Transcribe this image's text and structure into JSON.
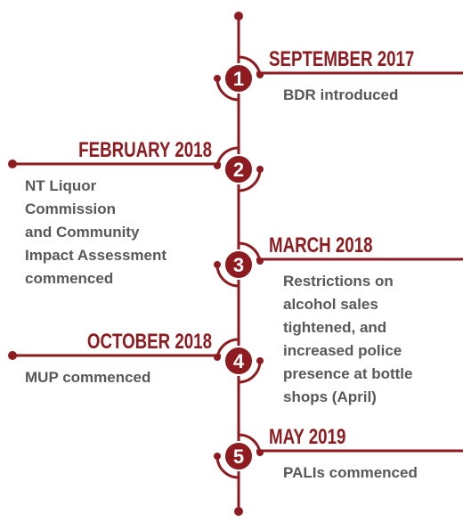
{
  "events": [
    {
      "number": "1",
      "date": "SEPTEMBER 2017",
      "lines": [
        "BDR introduced"
      ]
    },
    {
      "number": "2",
      "date": "FEBRUARY 2018",
      "lines": [
        "NT Liquor",
        "Commission",
        "and Community",
        "Impact Assessment",
        "commenced"
      ]
    },
    {
      "number": "3",
      "date": "MARCH 2018",
      "lines": [
        "Restrictions on",
        "alcohol sales",
        "tightened, and",
        "increased police",
        "presence at bottle",
        "shops (April)"
      ]
    },
    {
      "number": "4",
      "date": "OCTOBER 2018",
      "lines": [
        "MUP commenced"
      ]
    },
    {
      "number": "5",
      "date": "MAY 2019",
      "lines": [
        "PALIs commenced"
      ]
    }
  ]
}
